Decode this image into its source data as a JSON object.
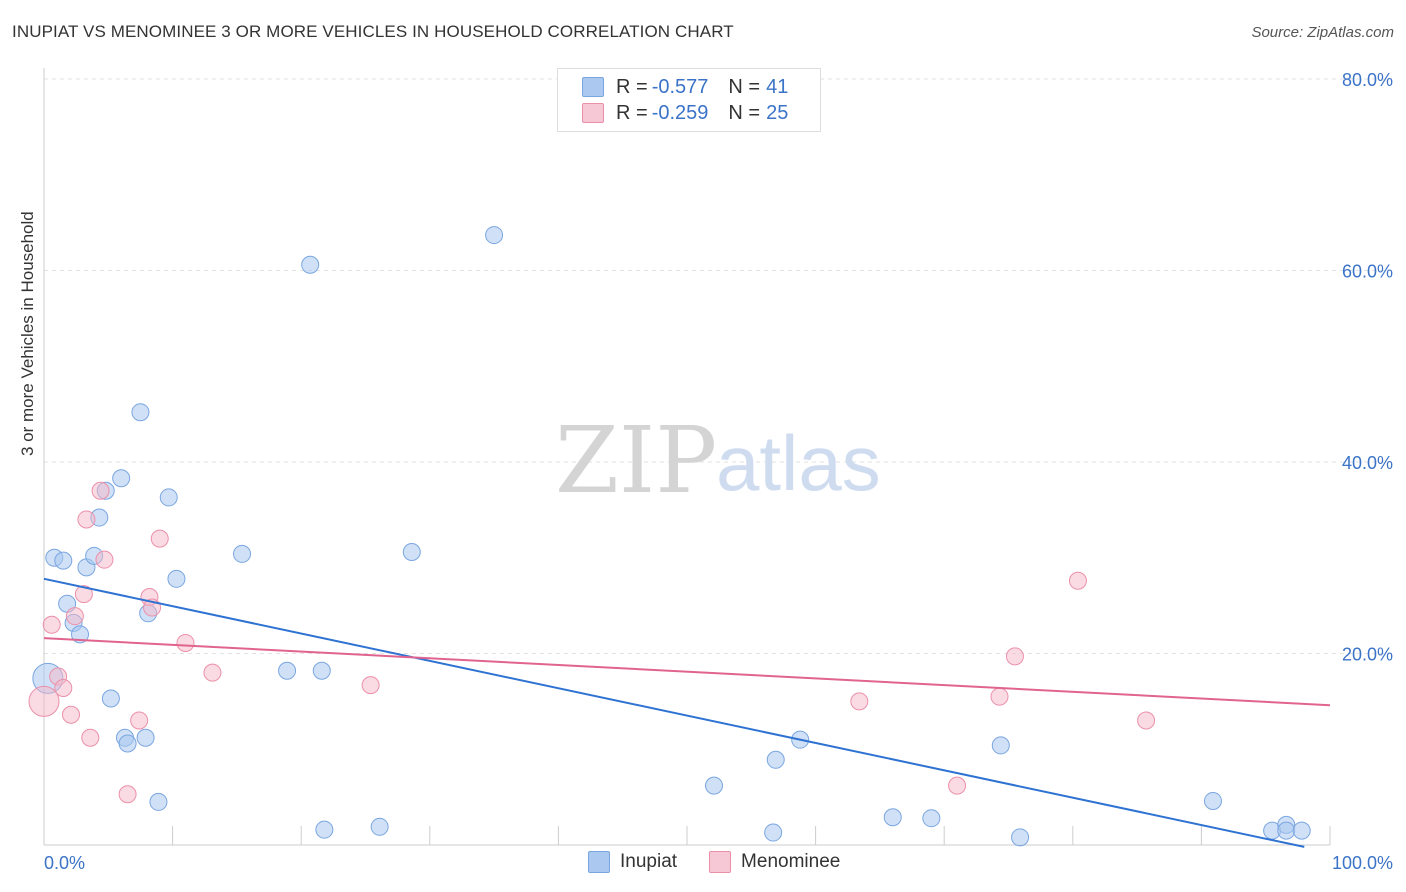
{
  "header": {
    "title": "INUPIAT VS MENOMINEE 3 OR MORE VEHICLES IN HOUSEHOLD CORRELATION CHART",
    "source": "Source: ZipAtlas.com"
  },
  "watermark": {
    "zip": "ZIP",
    "atlas": "atlas"
  },
  "legend": {
    "rows": [
      {
        "r_label": "R = ",
        "r_value": "-0.577",
        "n_label": "N = ",
        "n_value": "41",
        "color": "#aac8f0"
      },
      {
        "r_label": "R = ",
        "r_value": "-0.259",
        "n_label": "N = ",
        "n_value": "25",
        "color": "#f6b8c8"
      }
    ]
  },
  "chart_data": {
    "type": "scatter",
    "title": "INUPIAT VS MENOMINEE 3 OR MORE VEHICLES IN HOUSEHOLD CORRELATION CHART",
    "xlabel": "",
    "ylabel": "3 or more Vehicles in Household",
    "xlim": [
      0,
      100
    ],
    "ylim": [
      0,
      80
    ],
    "x_tick_labels": [
      "0.0%",
      "100.0%"
    ],
    "y_ticks": [
      20,
      40,
      60,
      80
    ],
    "y_tick_labels": [
      "20.0%",
      "40.0%",
      "60.0%",
      "80.0%"
    ],
    "grid": true,
    "legend_position": "bottom",
    "series": [
      {
        "name": "Inupiat",
        "color": "#aac8f0",
        "stroke": "#7aa6e0",
        "line_color": "#2e72d2",
        "trend": {
          "x": [
            0,
            98
          ],
          "y": [
            27.8,
            -0.2
          ]
        },
        "points": [
          {
            "x": 0.3,
            "y": 17.4,
            "big": true
          },
          {
            "x": 0.8,
            "y": 30.0
          },
          {
            "x": 1.5,
            "y": 29.7
          },
          {
            "x": 1.8,
            "y": 25.2
          },
          {
            "x": 2.3,
            "y": 23.2
          },
          {
            "x": 2.8,
            "y": 22.0
          },
          {
            "x": 3.3,
            "y": 29.0
          },
          {
            "x": 3.9,
            "y": 30.2
          },
          {
            "x": 4.3,
            "y": 34.2
          },
          {
            "x": 4.8,
            "y": 37.0
          },
          {
            "x": 5.2,
            "y": 15.3
          },
          {
            "x": 6.0,
            "y": 38.3
          },
          {
            "x": 6.3,
            "y": 11.2
          },
          {
            "x": 6.5,
            "y": 10.6
          },
          {
            "x": 7.5,
            "y": 45.2
          },
          {
            "x": 7.9,
            "y": 11.2
          },
          {
            "x": 8.1,
            "y": 24.2
          },
          {
            "x": 8.9,
            "y": 4.5
          },
          {
            "x": 9.7,
            "y": 36.3
          },
          {
            "x": 10.3,
            "y": 27.8
          },
          {
            "x": 15.4,
            "y": 30.4
          },
          {
            "x": 18.9,
            "y": 18.2
          },
          {
            "x": 20.7,
            "y": 60.6
          },
          {
            "x": 21.6,
            "y": 18.2
          },
          {
            "x": 21.8,
            "y": 1.6
          },
          {
            "x": 26.1,
            "y": 1.9
          },
          {
            "x": 28.6,
            "y": 30.6
          },
          {
            "x": 35.0,
            "y": 63.7
          },
          {
            "x": 52.1,
            "y": 6.2
          },
          {
            "x": 56.9,
            "y": 8.9
          },
          {
            "x": 56.7,
            "y": 1.3
          },
          {
            "x": 58.8,
            "y": 11.0
          },
          {
            "x": 66.0,
            "y": 2.9
          },
          {
            "x": 69.0,
            "y": 2.8
          },
          {
            "x": 74.4,
            "y": 10.4
          },
          {
            "x": 75.9,
            "y": 0.8
          },
          {
            "x": 90.9,
            "y": 4.6
          },
          {
            "x": 95.5,
            "y": 1.5
          },
          {
            "x": 96.6,
            "y": 2.1
          },
          {
            "x": 96.6,
            "y": 1.5
          },
          {
            "x": 97.8,
            "y": 1.5
          }
        ]
      },
      {
        "name": "Menominee",
        "color": "#f6b8c8",
        "stroke": "#ec90aa",
        "line_color": "#e0648f",
        "trend": {
          "x": [
            0,
            100
          ],
          "y": [
            21.6,
            14.6
          ]
        },
        "points": [
          {
            "x": 0.0,
            "y": 15.0,
            "big": true
          },
          {
            "x": 0.6,
            "y": 23.0
          },
          {
            "x": 1.1,
            "y": 17.6
          },
          {
            "x": 1.5,
            "y": 16.4
          },
          {
            "x": 2.1,
            "y": 13.6
          },
          {
            "x": 2.4,
            "y": 23.9
          },
          {
            "x": 3.1,
            "y": 26.2
          },
          {
            "x": 3.3,
            "y": 34.0
          },
          {
            "x": 3.6,
            "y": 11.2
          },
          {
            "x": 4.4,
            "y": 37.0
          },
          {
            "x": 4.7,
            "y": 29.8
          },
          {
            "x": 6.5,
            "y": 5.3
          },
          {
            "x": 7.4,
            "y": 13.0
          },
          {
            "x": 8.2,
            "y": 25.9
          },
          {
            "x": 8.4,
            "y": 24.8
          },
          {
            "x": 9.0,
            "y": 32.0
          },
          {
            "x": 11.0,
            "y": 21.1
          },
          {
            "x": 13.1,
            "y": 18.0
          },
          {
            "x": 25.4,
            "y": 16.7
          },
          {
            "x": 63.4,
            "y": 15.0
          },
          {
            "x": 71.0,
            "y": 6.2
          },
          {
            "x": 74.3,
            "y": 15.5
          },
          {
            "x": 75.5,
            "y": 19.7
          },
          {
            "x": 80.4,
            "y": 27.6
          },
          {
            "x": 85.7,
            "y": 13.0
          }
        ]
      }
    ]
  }
}
